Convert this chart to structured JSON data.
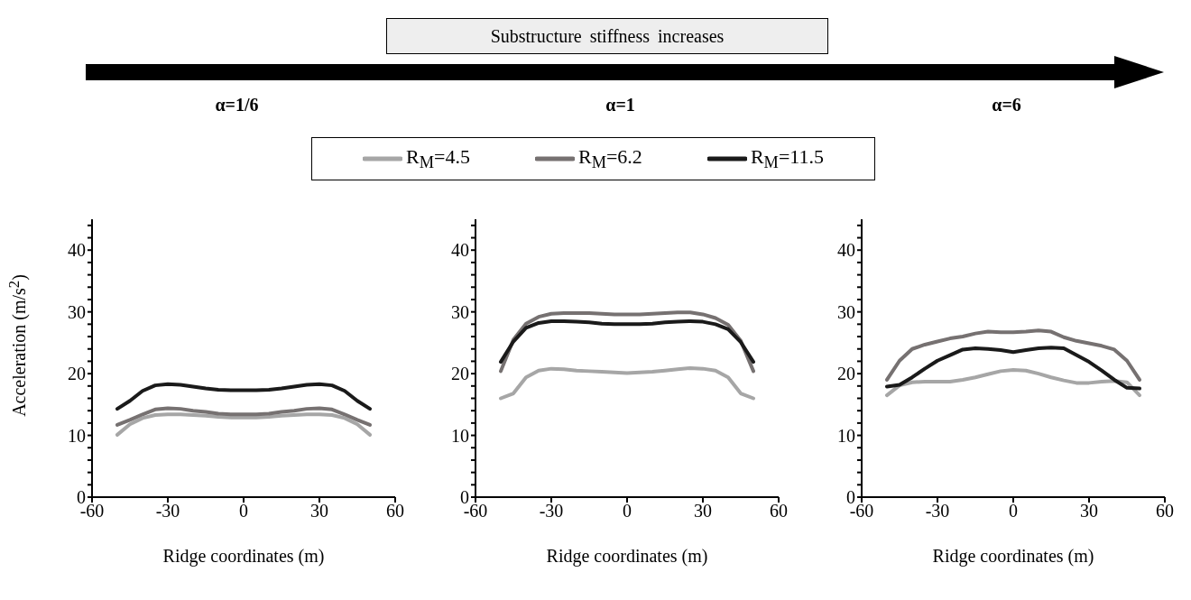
{
  "chart_data": [
    {
      "type": "line",
      "title": "α=1/6",
      "annotations": [
        "Substructure stiffness increases"
      ],
      "xlabel": "Ridge coordinates (m)",
      "ylabel": "Acceleration (m/s$^{2}$)",
      "legend": "top",
      "marker": "none",
      "line_style": "solid",
      "x": [
        -50,
        -45,
        -40,
        -35,
        -30,
        -25,
        -20,
        -15,
        -10,
        -5,
        0,
        5,
        10,
        15,
        20,
        25,
        30,
        35,
        40,
        45,
        50
      ],
      "series": [
        {
          "name": "R$_{M}$=4.5",
          "color": "#a6a6a6",
          "values": [
            10.1,
            11.8,
            12.8,
            13.3,
            13.4,
            13.4,
            13.3,
            13.2,
            13.0,
            12.9,
            12.9,
            12.9,
            13.0,
            13.2,
            13.3,
            13.4,
            13.4,
            13.3,
            12.8,
            11.8,
            10.1
          ]
        },
        {
          "name": "R$_{M}$=6.2",
          "color": "#767171",
          "values": [
            11.7,
            12.5,
            13.4,
            14.2,
            14.4,
            14.3,
            14.0,
            13.8,
            13.5,
            13.4,
            13.4,
            13.4,
            13.5,
            13.8,
            14.0,
            14.3,
            14.4,
            14.2,
            13.4,
            12.5,
            11.7
          ]
        },
        {
          "name": "R$_{M}$=11.5",
          "color": "#1a1a1a",
          "values": [
            14.3,
            15.6,
            17.2,
            18.1,
            18.3,
            18.2,
            17.9,
            17.6,
            17.4,
            17.3,
            17.3,
            17.3,
            17.4,
            17.6,
            17.9,
            18.2,
            18.3,
            18.1,
            17.2,
            15.6,
            14.3
          ]
        }
      ],
      "xlim": [
        -60,
        60
      ],
      "xticks": [
        -60,
        -30,
        0,
        30,
        60
      ],
      "ylim": [
        0,
        45
      ],
      "yticks": [
        0,
        {
          "value": 2,
          "label": null
        },
        {
          "value": 4,
          "label": null
        },
        {
          "value": 6,
          "label": null
        },
        {
          "value": 8,
          "label": null
        },
        10,
        {
          "value": 12,
          "label": null
        },
        {
          "value": 14,
          "label": null
        },
        {
          "value": 16,
          "label": null
        },
        {
          "value": 18,
          "label": null
        },
        20,
        {
          "value": 22,
          "label": null
        },
        {
          "value": 24,
          "label": null
        },
        {
          "value": 26,
          "label": null
        },
        {
          "value": 28,
          "label": null
        },
        30,
        {
          "value": 32,
          "label": null
        },
        {
          "value": 34,
          "label": null
        },
        {
          "value": 36,
          "label": null
        },
        {
          "value": 38,
          "label": null
        },
        40,
        {
          "value": 42,
          "label": null
        },
        {
          "value": 44,
          "label": null
        }
      ]
    },
    {
      "type": "line",
      "title": "α=1",
      "xlabel": "Ridge coordinates (m)",
      "marker": "none",
      "line_style": "solid",
      "x": [
        -50,
        -45,
        -40,
        -35,
        -30,
        -25,
        -20,
        -15,
        -10,
        -5,
        0,
        5,
        10,
        15,
        20,
        25,
        30,
        35,
        40,
        45,
        50
      ],
      "series": [
        {
          "color": "#a6a6a6",
          "values": [
            16.0,
            16.8,
            19.4,
            20.5,
            20.8,
            20.7,
            20.5,
            20.4,
            20.3,
            20.2,
            20.1,
            20.2,
            20.3,
            20.5,
            20.7,
            20.9,
            20.8,
            20.5,
            19.4,
            16.8,
            16.0
          ]
        },
        {
          "color": "#767171",
          "values": [
            20.4,
            25.5,
            28.1,
            29.2,
            29.7,
            29.8,
            29.8,
            29.8,
            29.7,
            29.6,
            29.6,
            29.6,
            29.7,
            29.8,
            29.9,
            29.9,
            29.6,
            29.0,
            27.9,
            25.3,
            20.4
          ]
        },
        {
          "color": "#1a1a1a",
          "values": [
            21.9,
            25.2,
            27.4,
            28.2,
            28.5,
            28.5,
            28.4,
            28.3,
            28.1,
            28.0,
            28.0,
            28.0,
            28.1,
            28.3,
            28.4,
            28.5,
            28.4,
            28.0,
            27.2,
            25.1,
            21.9
          ]
        }
      ],
      "xlim": [
        -60,
        60
      ],
      "xticks": [
        -60,
        -30,
        0,
        30,
        60
      ],
      "ylim": [
        0,
        45
      ],
      "yticks": [
        0,
        {
          "value": 2,
          "label": null
        },
        {
          "value": 4,
          "label": null
        },
        {
          "value": 6,
          "label": null
        },
        {
          "value": 8,
          "label": null
        },
        10,
        {
          "value": 12,
          "label": null
        },
        {
          "value": 14,
          "label": null
        },
        {
          "value": 16,
          "label": null
        },
        {
          "value": 18,
          "label": null
        },
        20,
        {
          "value": 22,
          "label": null
        },
        {
          "value": 24,
          "label": null
        },
        {
          "value": 26,
          "label": null
        },
        {
          "value": 28,
          "label": null
        },
        30,
        {
          "value": 32,
          "label": null
        },
        {
          "value": 34,
          "label": null
        },
        {
          "value": 36,
          "label": null
        },
        {
          "value": 38,
          "label": null
        },
        40,
        {
          "value": 42,
          "label": null
        },
        {
          "value": 44,
          "label": null
        }
      ]
    },
    {
      "type": "line",
      "title": "α=6",
      "xlabel": "Ridge coordinates (m)",
      "marker": "none",
      "line_style": "solid",
      "x": [
        -50,
        -45,
        -40,
        -35,
        -30,
        -25,
        -20,
        -15,
        -10,
        -5,
        0,
        5,
        10,
        15,
        20,
        25,
        30,
        35,
        40,
        45,
        50
      ],
      "series": [
        {
          "color": "#a6a6a6",
          "values": [
            16.5,
            18.1,
            18.6,
            18.7,
            18.7,
            18.7,
            19.0,
            19.4,
            19.9,
            20.4,
            20.6,
            20.5,
            20.0,
            19.4,
            18.9,
            18.5,
            18.5,
            18.7,
            18.8,
            18.6,
            16.5
          ]
        },
        {
          "color": "#767171",
          "values": [
            19.0,
            22.1,
            24.0,
            24.7,
            25.2,
            25.7,
            26.0,
            26.5,
            26.8,
            26.7,
            26.7,
            26.8,
            27.0,
            26.8,
            25.9,
            25.3,
            24.9,
            24.5,
            23.9,
            22.1,
            19.0
          ]
        },
        {
          "color": "#1a1a1a",
          "values": [
            17.9,
            18.2,
            19.4,
            20.8,
            22.1,
            23.0,
            23.9,
            24.1,
            24.0,
            23.8,
            23.5,
            23.8,
            24.1,
            24.2,
            24.1,
            23.0,
            21.9,
            20.5,
            19.0,
            17.7,
            17.6
          ]
        }
      ],
      "xlim": [
        -60,
        60
      ],
      "xticks": [
        -60,
        -30,
        0,
        30,
        60
      ],
      "ylim": [
        0,
        45
      ],
      "yticks": [
        0,
        {
          "value": 2,
          "label": null
        },
        {
          "value": 4,
          "label": null
        },
        {
          "value": 6,
          "label": null
        },
        {
          "value": 8,
          "label": null
        },
        10,
        {
          "value": 12,
          "label": null
        },
        {
          "value": 14,
          "label": null
        },
        {
          "value": 16,
          "label": null
        },
        {
          "value": 18,
          "label": null
        },
        20,
        {
          "value": 22,
          "label": null
        },
        {
          "value": 24,
          "label": null
        },
        {
          "value": 26,
          "label": null
        },
        {
          "value": 28,
          "label": null
        },
        30,
        {
          "value": 32,
          "label": null
        },
        {
          "value": 34,
          "label": null
        },
        {
          "value": 36,
          "label": null
        },
        {
          "value": 38,
          "label": null
        },
        40,
        {
          "value": 42,
          "label": null
        },
        {
          "value": 44,
          "label": null
        }
      ]
    }
  ]
}
